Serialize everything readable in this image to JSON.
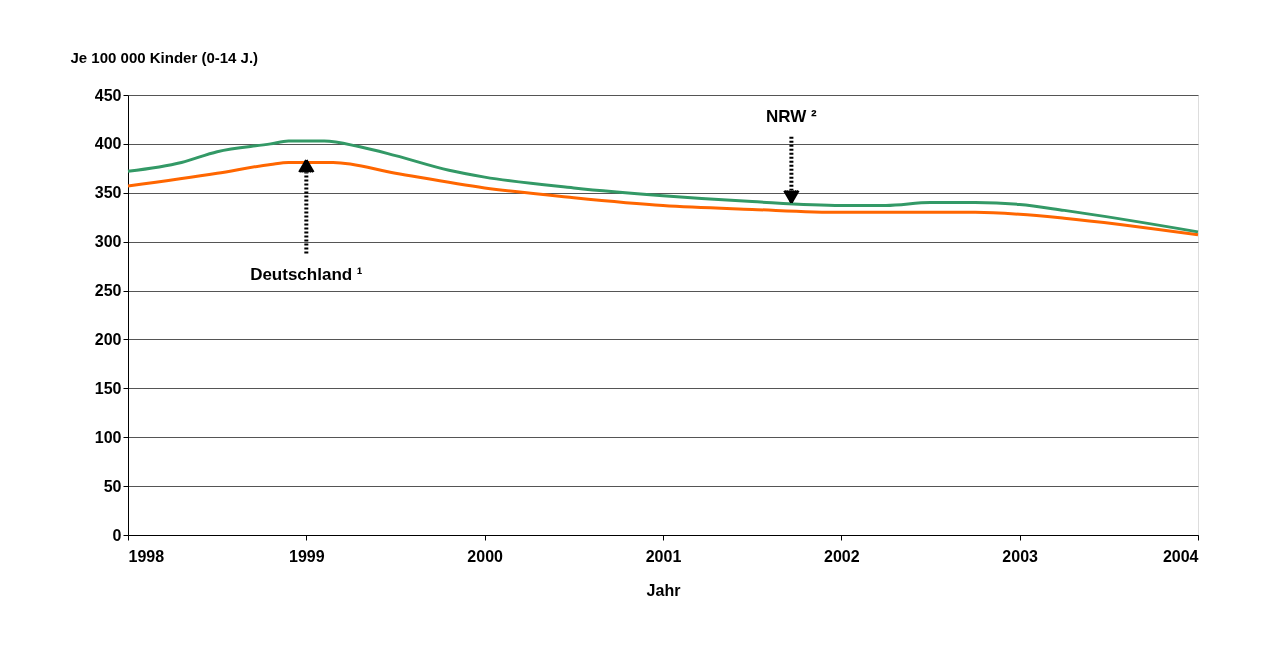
{
  "chart_data": {
    "type": "line",
    "xlabel": "Jahr",
    "ylabel": "Je 100 000 Kinder (0-14 J.)",
    "xlim": [
      1998,
      2004
    ],
    "xticks": [
      1998,
      1999,
      2000,
      2001,
      2002,
      2003,
      2004
    ],
    "ylim": [
      0,
      450
    ],
    "yticks": [
      0,
      50,
      100,
      150,
      200,
      250,
      300,
      350,
      400,
      450
    ],
    "grid": "y",
    "legend": false,
    "marker": "none",
    "line_style": "solid",
    "series": [
      {
        "name": "Deutschland ¹",
        "color": "#ff6600",
        "x": [
          1998,
          1998.5,
          1998.8,
          1998.9,
          1999.15,
          1999.5,
          2000,
          2000.5,
          2001,
          2001.5,
          2002,
          2002.75,
          2003,
          2003.25,
          2004
        ],
        "values": [
          357,
          370,
          379,
          381,
          381,
          370,
          355,
          345,
          337,
          333,
          330,
          330,
          328,
          324,
          307
        ]
      },
      {
        "name": "NRW ²",
        "color": "#339966",
        "x": [
          1998,
          1998.3,
          1998.5,
          1998.8,
          1998.9,
          1999.1,
          1999.3,
          1999.5,
          1999.8,
          2000,
          2000.5,
          2001,
          2001.5,
          2002,
          2002.25,
          2002.5,
          2002.75,
          2003,
          2003.25,
          2004
        ],
        "values": [
          372,
          381,
          392,
          400,
          403,
          403,
          397,
          388,
          373,
          366,
          355,
          347,
          341,
          337,
          337,
          340,
          340,
          338,
          332,
          310
        ]
      }
    ]
  }
}
